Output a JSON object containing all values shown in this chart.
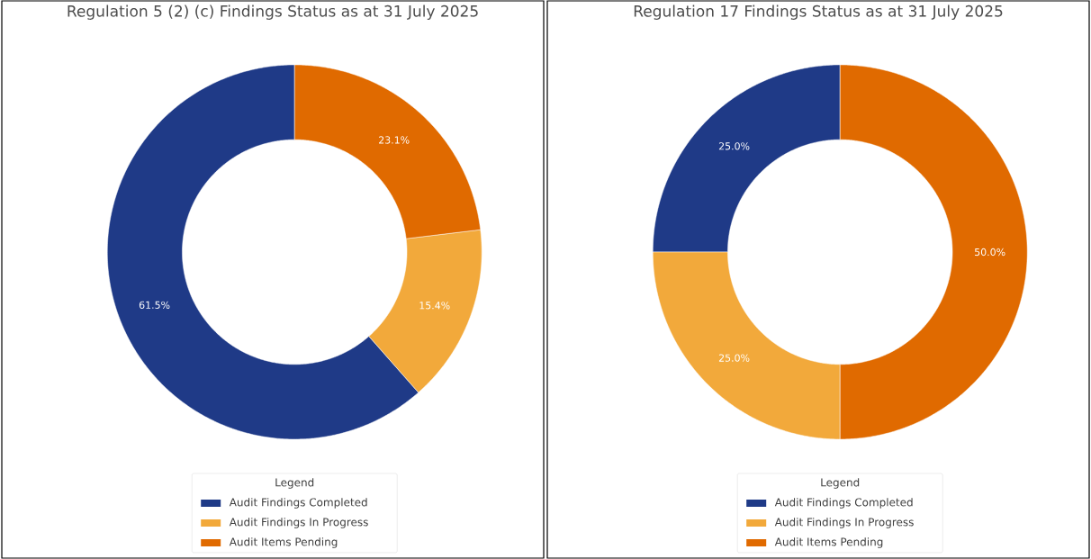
{
  "chart_data": [
    {
      "type": "donut",
      "title": "Regulation 5 (2) (c) Findings Status as at 31 July 2025",
      "categories": [
        "Audit Findings Completed",
        "Audit Findings In Progress",
        "Audit Items Pending"
      ],
      "values": [
        61.5,
        15.4,
        23.1
      ],
      "value_labels": [
        "61.5%",
        "15.4%",
        "23.1%"
      ],
      "colors": [
        "#1f3a87",
        "#f2a93b",
        "#e06a00"
      ],
      "legend": "bottom",
      "legend_title": "Legend"
    },
    {
      "type": "donut",
      "title": "Regulation 17 Findings Status as at 31 July 2025",
      "categories": [
        "Audit Findings Completed",
        "Audit Findings In Progress",
        "Audit Items Pending"
      ],
      "values": [
        25.0,
        25.0,
        50.0
      ],
      "value_labels": [
        "25.0%",
        "25.0%",
        "50.0%"
      ],
      "colors": [
        "#1f3a87",
        "#f2a93b",
        "#e06a00"
      ],
      "legend": "bottom",
      "legend_title": "Legend"
    }
  ]
}
